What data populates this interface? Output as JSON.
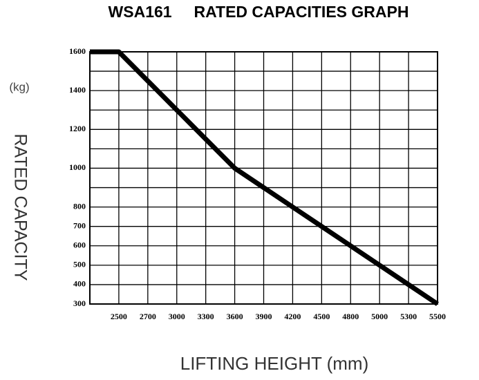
{
  "chart_data": {
    "type": "line",
    "title": "WSA161     RATED CAPACITIES GRAPH",
    "y_unit": "(kg)",
    "y_label": "RATED CAPACITY",
    "x_label": "LIFTING HEIGHT (mm)",
    "categories": [
      null,
      "2500",
      "2700",
      "3000",
      "3300",
      "3600",
      "3900",
      "4200",
      "4500",
      "4800",
      "5000",
      "5300",
      "5500"
    ],
    "values": [
      1600,
      1600,
      1450,
      1300,
      1150,
      1000,
      900,
      800,
      700,
      600,
      500,
      400,
      300
    ],
    "color": "#000000",
    "ylim": [
      300,
      1600
    ],
    "yticks": [
      300,
      400,
      500,
      600,
      700,
      800,
      1000,
      1200,
      1400,
      1600
    ],
    "grid": true
  }
}
